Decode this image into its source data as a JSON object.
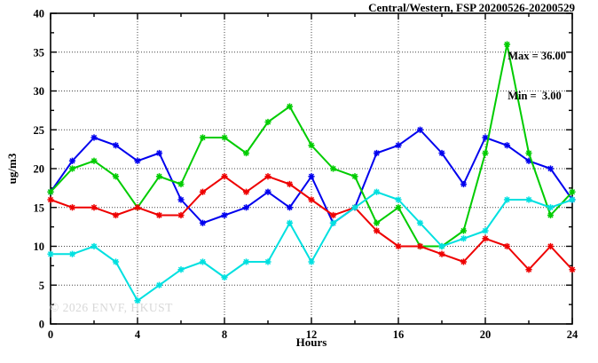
{
  "chart_data": {
    "type": "line",
    "title": "Central/Western, FSP 20200526-20200529",
    "xlabel": "Hours",
    "ylabel": "ug/m3",
    "annotations": {
      "max_label": "Max = 36.00",
      "min_label": "Min =  3.00"
    },
    "watermark": "© 2026 ENVF, HKUST",
    "xlim": [
      0,
      24
    ],
    "ylim": [
      0,
      40
    ],
    "x_major_tick_step": 4,
    "x_minor_tick_step": 2,
    "y_major_tick_step": 5,
    "y_minor_tick_step": 2.5,
    "grid": true,
    "legend_position": "top-right-inside",
    "x_tick_labels": [
      "0",
      "4",
      "8",
      "12",
      "16",
      "20",
      "24"
    ],
    "y_tick_labels": [
      "0",
      "5",
      "10",
      "15",
      "20",
      "25",
      "30",
      "35",
      "40"
    ],
    "x": [
      0,
      1,
      2,
      3,
      4,
      5,
      6,
      7,
      8,
      9,
      10,
      11,
      12,
      13,
      14,
      15,
      16,
      17,
      18,
      19,
      20,
      21,
      22,
      23,
      24
    ],
    "series": [
      {
        "name": "series-blue",
        "color": "#0000ee",
        "values": [
          17,
          21,
          24,
          23,
          21,
          22,
          16,
          13,
          14,
          15,
          17,
          15,
          19,
          13,
          15,
          22,
          23,
          25,
          22,
          18,
          24,
          23,
          21,
          20,
          16
        ]
      },
      {
        "name": "series-green",
        "color": "#00cc00",
        "values": [
          17,
          20,
          21,
          19,
          15,
          19,
          18,
          24,
          24,
          22,
          26,
          28,
          23,
          20,
          19,
          13,
          15,
          10,
          10,
          12,
          22,
          36,
          22,
          14,
          17
        ]
      },
      {
        "name": "series-red",
        "color": "#ee0000",
        "values": [
          16,
          15,
          15,
          14,
          15,
          14,
          14,
          17,
          19,
          17,
          19,
          18,
          16,
          14,
          15,
          12,
          10,
          10,
          9,
          8,
          11,
          10,
          7,
          10,
          7
        ]
      },
      {
        "name": "series-cyan",
        "color": "#00e0e0",
        "values": [
          9,
          9,
          10,
          8,
          3,
          5,
          7,
          8,
          6,
          8,
          8,
          13,
          8,
          13,
          15,
          17,
          16,
          13,
          10,
          11,
          12,
          16,
          16,
          15,
          16
        ]
      }
    ],
    "axis_color": "#000000",
    "grid_color": "#444444"
  }
}
